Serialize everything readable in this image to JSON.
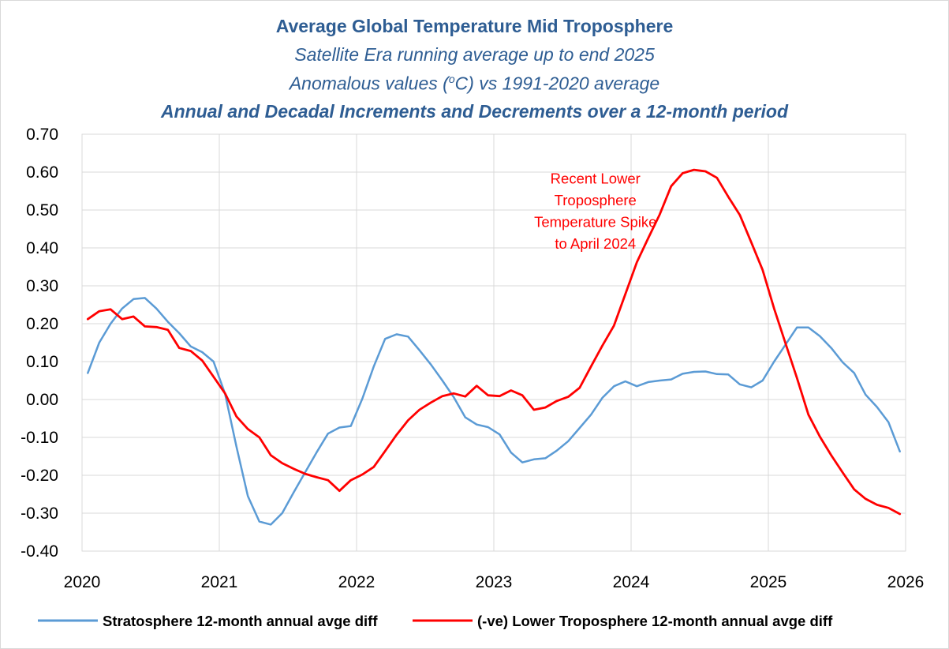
{
  "chart_data": {
    "type": "line",
    "title": "Average Global Temperature Mid Troposphere",
    "subtitle_1": "Satellite Era running average up to end 2025",
    "subtitle_2_prefix": "Anomalous values (",
    "subtitle_2_sup": "o",
    "subtitle_2_suffix": "C) vs 1991-2020 average",
    "subtitle_3": "Annual and Decadal Increments and Decrements over a 12-month period",
    "xlim": [
      2020,
      2026
    ],
    "ylim": [
      -0.4,
      0.7
    ],
    "x_ticks": [
      2020,
      2021,
      2022,
      2023,
      2024,
      2025,
      2026
    ],
    "x_tick_labels": [
      "2020",
      "2021",
      "2022",
      "2023",
      "2024",
      "2025",
      "2026"
    ],
    "y_ticks": [
      0.7,
      0.6,
      0.5,
      0.4,
      0.3,
      0.2,
      0.1,
      0.0,
      -0.1,
      -0.2,
      -0.3,
      -0.4
    ],
    "y_tick_labels": [
      "0.70",
      "0.60",
      "0.50",
      "0.40",
      "0.30",
      "0.20",
      "0.10",
      "0.00",
      "-0.10",
      "-0.20",
      "-0.30",
      "-0.40"
    ],
    "legend_position": "bottom",
    "annotation": {
      "lines": [
        "Recent Lower",
        "Troposphere",
        "Temperature Spike",
        "to April 2024"
      ],
      "x": 2023.74,
      "y": 0.57,
      "color": "#ff0000"
    },
    "series": [
      {
        "name": "Stratosphere 12-month annual avge diff",
        "color": "#5b9bd5",
        "values": [
          0.07,
          0.15,
          0.2,
          0.24,
          0.265,
          0.268,
          0.24,
          0.205,
          0.175,
          0.14,
          0.125,
          0.1,
          0.015,
          -0.125,
          -0.255,
          -0.322,
          -0.33,
          -0.3,
          -0.245,
          -0.192,
          -0.14,
          -0.09,
          -0.074,
          -0.07,
          0.002,
          0.087,
          0.16,
          0.172,
          0.166,
          0.13,
          0.092,
          0.05,
          0.006,
          -0.047,
          -0.066,
          -0.073,
          -0.092,
          -0.14,
          -0.166,
          -0.158,
          -0.155,
          -0.135,
          -0.11,
          -0.075,
          -0.04,
          0.005,
          0.035,
          0.048,
          0.035,
          0.046,
          0.05,
          0.053,
          0.068,
          0.073,
          0.074,
          0.067,
          0.066,
          0.04,
          0.032,
          0.05,
          0.1,
          0.145,
          0.19,
          0.19,
          0.167,
          0.136,
          0.098,
          0.07,
          0.013,
          -0.02,
          -0.06,
          -0.137
        ]
      },
      {
        "name": "(-ve) Lower Troposphere 12-month annual avge diff",
        "color": "#ff0000",
        "values": [
          0.212,
          0.233,
          0.238,
          0.212,
          0.219,
          0.193,
          0.191,
          0.184,
          0.136,
          0.128,
          0.103,
          0.06,
          0.016,
          -0.045,
          -0.078,
          -0.1,
          -0.147,
          -0.168,
          -0.183,
          -0.196,
          -0.205,
          -0.213,
          -0.241,
          -0.213,
          -0.198,
          -0.178,
          -0.136,
          -0.093,
          -0.055,
          -0.027,
          -0.008,
          0.009,
          0.016,
          0.008,
          0.036,
          0.011,
          0.009,
          0.024,
          0.011,
          -0.027,
          -0.021,
          -0.004,
          0.007,
          0.031,
          0.087,
          0.143,
          0.195,
          0.278,
          0.362,
          0.426,
          0.488,
          0.563,
          0.597,
          0.606,
          0.602,
          0.585,
          0.535,
          0.487,
          0.415,
          0.342,
          0.24,
          0.148,
          0.057,
          -0.04,
          -0.098,
          -0.147,
          -0.193,
          -0.237,
          -0.262,
          -0.278,
          -0.286,
          -0.302
        ]
      }
    ]
  }
}
